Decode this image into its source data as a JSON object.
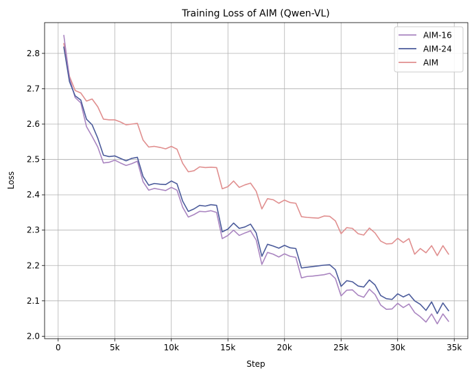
{
  "chart_data": {
    "type": "line",
    "title": "Training Loss of AIM (Qwen-VL)",
    "xlabel": "Step",
    "ylabel": "Loss",
    "xlim": [
      -1200,
      36200
    ],
    "ylim": [
      1.993,
      2.887
    ],
    "xticks": [
      0,
      5000,
      10000,
      15000,
      20000,
      25000,
      30000,
      35000
    ],
    "xtick_labels": [
      "0",
      "5k",
      "10k",
      "15k",
      "20k",
      "25k",
      "30k",
      "35k"
    ],
    "yticks": [
      2.0,
      2.1,
      2.2,
      2.3,
      2.4,
      2.5,
      2.6,
      2.7,
      2.8
    ],
    "ytick_labels": [
      "2.0",
      "2.1",
      "2.2",
      "2.3",
      "2.4",
      "2.5",
      "2.6",
      "2.7",
      "2.8"
    ],
    "grid": true,
    "legend_position": "top-right",
    "x": [
      500,
      1000,
      1500,
      2000,
      2500,
      3000,
      3500,
      4000,
      4500,
      5000,
      5500,
      6000,
      6500,
      7000,
      7500,
      8000,
      8500,
      9000,
      9500,
      10000,
      10500,
      11000,
      11500,
      12000,
      12500,
      13000,
      13500,
      14000,
      14500,
      15000,
      15500,
      16000,
      16500,
      17000,
      17500,
      18000,
      18500,
      19000,
      19500,
      20000,
      20500,
      21000,
      21500,
      22000,
      22500,
      23000,
      23500,
      24000,
      24500,
      25000,
      25500,
      26000,
      26500,
      27000,
      27500,
      28000,
      28500,
      29000,
      29500,
      30000,
      30500,
      31000,
      31500,
      32000,
      32500,
      33000,
      33500,
      34000,
      34500
    ],
    "series": [
      {
        "name": "AIM-16",
        "color": "#a984c0",
        "values": [
          2.851,
          2.73,
          2.675,
          2.66,
          2.593,
          2.565,
          2.535,
          2.49,
          2.492,
          2.498,
          2.49,
          2.483,
          2.488,
          2.495,
          2.437,
          2.413,
          2.418,
          2.415,
          2.412,
          2.421,
          2.413,
          2.365,
          2.337,
          2.344,
          2.353,
          2.352,
          2.355,
          2.35,
          2.276,
          2.285,
          2.3,
          2.285,
          2.292,
          2.298,
          2.272,
          2.203,
          2.237,
          2.232,
          2.224,
          2.233,
          2.226,
          2.223,
          2.165,
          2.169,
          2.17,
          2.172,
          2.174,
          2.178,
          2.163,
          2.114,
          2.13,
          2.131,
          2.116,
          2.11,
          2.133,
          2.118,
          2.088,
          2.076,
          2.077,
          2.093,
          2.081,
          2.091,
          2.067,
          2.055,
          2.04,
          2.063,
          2.035,
          2.063,
          2.042
        ]
      },
      {
        "name": "AIM-24",
        "color": "#4a5a9a",
        "values": [
          2.818,
          2.72,
          2.68,
          2.668,
          2.614,
          2.598,
          2.56,
          2.512,
          2.508,
          2.51,
          2.503,
          2.496,
          2.503,
          2.506,
          2.452,
          2.427,
          2.432,
          2.43,
          2.429,
          2.439,
          2.431,
          2.382,
          2.353,
          2.36,
          2.37,
          2.368,
          2.372,
          2.37,
          2.295,
          2.303,
          2.32,
          2.305,
          2.309,
          2.317,
          2.292,
          2.226,
          2.26,
          2.255,
          2.249,
          2.257,
          2.25,
          2.248,
          2.193,
          2.195,
          2.197,
          2.199,
          2.201,
          2.202,
          2.188,
          2.141,
          2.157,
          2.154,
          2.142,
          2.139,
          2.159,
          2.145,
          2.115,
          2.106,
          2.104,
          2.12,
          2.111,
          2.119,
          2.1,
          2.09,
          2.073,
          2.097,
          2.064,
          2.094,
          2.072
        ]
      },
      {
        "name": "AIM",
        "color": "#e08e8e",
        "values": [
          2.828,
          2.735,
          2.695,
          2.688,
          2.665,
          2.671,
          2.649,
          2.614,
          2.612,
          2.612,
          2.606,
          2.598,
          2.6,
          2.602,
          2.555,
          2.535,
          2.537,
          2.534,
          2.53,
          2.537,
          2.529,
          2.489,
          2.465,
          2.468,
          2.479,
          2.477,
          2.478,
          2.477,
          2.417,
          2.423,
          2.439,
          2.421,
          2.428,
          2.433,
          2.41,
          2.36,
          2.389,
          2.386,
          2.376,
          2.385,
          2.378,
          2.376,
          2.338,
          2.336,
          2.335,
          2.334,
          2.34,
          2.339,
          2.326,
          2.29,
          2.307,
          2.305,
          2.29,
          2.286,
          2.306,
          2.292,
          2.269,
          2.261,
          2.262,
          2.277,
          2.265,
          2.276,
          2.232,
          2.248,
          2.236,
          2.256,
          2.228,
          2.256,
          2.232
        ]
      }
    ]
  }
}
